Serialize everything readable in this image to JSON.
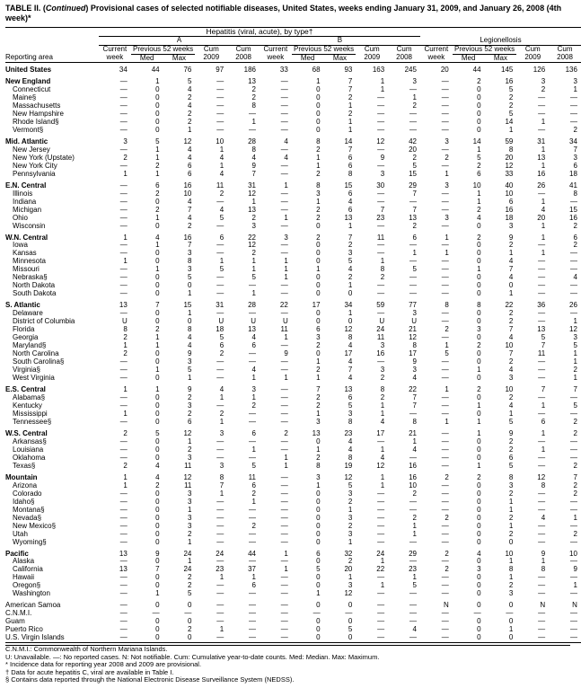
{
  "title_prefix": "TABLE II. (",
  "title_italic": "Continued",
  "title_rest": ") Provisional cases of selected notifiable diseases, United States, weeks ending January 31, 2009, and January 26, 2008 (4th week)*",
  "subtitle": "Hepatitis (viral, acute), by type†",
  "col_headers": {
    "group_a": "A",
    "group_b": "B",
    "group_leg": "Legionellosis",
    "reporting_area": "Reporting area",
    "current_week": "Current week",
    "previous_52": "Previous 52 weeks",
    "med": "Med",
    "max": "Max",
    "cum_2009": "Cum 2009",
    "cum_2008": "Cum 2008"
  },
  "rows": [
    {
      "g": 1,
      "lbl": "United States",
      "bold": 1,
      "v": [
        "34",
        "44",
        "76",
        "97",
        "186",
        "33",
        "68",
        "93",
        "163",
        "245",
        "20",
        "44",
        "145",
        "126",
        "136"
      ]
    },
    {
      "g": 1,
      "lbl": "New England",
      "bold": 1,
      "v": [
        "—",
        "1",
        "5",
        "—",
        "13",
        "—",
        "1",
        "7",
        "1",
        "3",
        "—",
        "2",
        "16",
        "3",
        "3"
      ]
    },
    {
      "lbl": "Connecticut",
      "ind": 1,
      "v": [
        "—",
        "0",
        "4",
        "—",
        "2",
        "—",
        "0",
        "7",
        "1",
        "—",
        "—",
        "0",
        "5",
        "2",
        "1"
      ]
    },
    {
      "lbl": "Maine§",
      "ind": 1,
      "v": [
        "—",
        "0",
        "2",
        "—",
        "2",
        "—",
        "0",
        "2",
        "—",
        "1",
        "—",
        "0",
        "2",
        "—",
        "—"
      ]
    },
    {
      "lbl": "Massachusetts",
      "ind": 1,
      "v": [
        "—",
        "0",
        "4",
        "—",
        "8",
        "—",
        "0",
        "1",
        "—",
        "2",
        "—",
        "0",
        "2",
        "—",
        "—"
      ]
    },
    {
      "lbl": "New Hampshire",
      "ind": 1,
      "v": [
        "—",
        "0",
        "2",
        "—",
        "—",
        "—",
        "0",
        "2",
        "—",
        "—",
        "—",
        "0",
        "5",
        "—",
        "—"
      ]
    },
    {
      "lbl": "Rhode Island§",
      "ind": 1,
      "v": [
        "—",
        "0",
        "2",
        "—",
        "1",
        "—",
        "0",
        "1",
        "—",
        "—",
        "—",
        "0",
        "14",
        "1",
        "—"
      ]
    },
    {
      "lbl": "Vermont§",
      "ind": 1,
      "v": [
        "—",
        "0",
        "1",
        "—",
        "—",
        "—",
        "0",
        "1",
        "—",
        "—",
        "—",
        "0",
        "1",
        "—",
        "2"
      ]
    },
    {
      "g": 1,
      "lbl": "Mid. Atlantic",
      "bold": 1,
      "v": [
        "3",
        "5",
        "12",
        "10",
        "28",
        "4",
        "8",
        "14",
        "12",
        "42",
        "3",
        "14",
        "59",
        "31",
        "34"
      ]
    },
    {
      "lbl": "New Jersey",
      "ind": 1,
      "v": [
        "—",
        "1",
        "4",
        "1",
        "8",
        "—",
        "2",
        "7",
        "—",
        "20",
        "—",
        "1",
        "8",
        "1",
        "7"
      ]
    },
    {
      "lbl": "New York (Upstate)",
      "ind": 1,
      "v": [
        "2",
        "1",
        "4",
        "4",
        "4",
        "4",
        "1",
        "6",
        "9",
        "2",
        "2",
        "5",
        "20",
        "13",
        "3"
      ]
    },
    {
      "lbl": "New York City",
      "ind": 1,
      "v": [
        "—",
        "2",
        "6",
        "1",
        "9",
        "—",
        "1",
        "6",
        "—",
        "5",
        "—",
        "2",
        "12",
        "1",
        "6"
      ]
    },
    {
      "lbl": "Pennsylvania",
      "ind": 1,
      "v": [
        "1",
        "1",
        "6",
        "4",
        "7",
        "—",
        "2",
        "8",
        "3",
        "15",
        "1",
        "6",
        "33",
        "16",
        "18"
      ]
    },
    {
      "g": 1,
      "lbl": "E.N. Central",
      "bold": 1,
      "v": [
        "—",
        "6",
        "16",
        "11",
        "31",
        "1",
        "8",
        "15",
        "30",
        "29",
        "3",
        "10",
        "40",
        "26",
        "41"
      ]
    },
    {
      "lbl": "Illinois",
      "ind": 1,
      "v": [
        "—",
        "2",
        "10",
        "2",
        "12",
        "—",
        "3",
        "6",
        "—",
        "7",
        "—",
        "1",
        "10",
        "—",
        "8"
      ]
    },
    {
      "lbl": "Indiana",
      "ind": 1,
      "v": [
        "—",
        "0",
        "4",
        "—",
        "1",
        "—",
        "1",
        "4",
        "—",
        "—",
        "—",
        "1",
        "6",
        "1",
        "—"
      ]
    },
    {
      "lbl": "Michigan",
      "ind": 1,
      "v": [
        "—",
        "2",
        "7",
        "4",
        "13",
        "—",
        "2",
        "6",
        "7",
        "7",
        "—",
        "2",
        "16",
        "4",
        "15"
      ]
    },
    {
      "lbl": "Ohio",
      "ind": 1,
      "v": [
        "—",
        "1",
        "4",
        "5",
        "2",
        "1",
        "2",
        "13",
        "23",
        "13",
        "3",
        "4",
        "18",
        "20",
        "16"
      ]
    },
    {
      "lbl": "Wisconsin",
      "ind": 1,
      "v": [
        "—",
        "0",
        "2",
        "—",
        "3",
        "—",
        "0",
        "1",
        "—",
        "2",
        "—",
        "0",
        "3",
        "1",
        "2"
      ]
    },
    {
      "g": 1,
      "lbl": "W.N. Central",
      "bold": 1,
      "v": [
        "1",
        "4",
        "16",
        "6",
        "22",
        "3",
        "2",
        "7",
        "11",
        "6",
        "1",
        "2",
        "9",
        "1",
        "6"
      ]
    },
    {
      "lbl": "Iowa",
      "ind": 1,
      "v": [
        "—",
        "1",
        "7",
        "—",
        "12",
        "—",
        "0",
        "2",
        "—",
        "—",
        "—",
        "0",
        "2",
        "—",
        "2"
      ]
    },
    {
      "lbl": "Kansas",
      "ind": 1,
      "v": [
        "—",
        "0",
        "3",
        "—",
        "2",
        "—",
        "0",
        "3",
        "—",
        "1",
        "1",
        "0",
        "1",
        "1",
        "—"
      ]
    },
    {
      "lbl": "Minnesota",
      "ind": 1,
      "v": [
        "1",
        "0",
        "8",
        "1",
        "1",
        "1",
        "0",
        "5",
        "1",
        "—",
        "—",
        "0",
        "4",
        "—",
        "—"
      ]
    },
    {
      "lbl": "Missouri",
      "ind": 1,
      "v": [
        "—",
        "1",
        "3",
        "5",
        "1",
        "1",
        "1",
        "4",
        "8",
        "5",
        "—",
        "1",
        "7",
        "—",
        "—"
      ]
    },
    {
      "lbl": "Nebraska§",
      "ind": 1,
      "v": [
        "—",
        "0",
        "5",
        "—",
        "5",
        "1",
        "0",
        "2",
        "2",
        "—",
        "—",
        "0",
        "4",
        "—",
        "4"
      ]
    },
    {
      "lbl": "North Dakota",
      "ind": 1,
      "v": [
        "—",
        "0",
        "0",
        "—",
        "—",
        "—",
        "0",
        "1",
        "—",
        "—",
        "—",
        "0",
        "0",
        "—",
        "—"
      ]
    },
    {
      "lbl": "South Dakota",
      "ind": 1,
      "v": [
        "—",
        "0",
        "1",
        "—",
        "1",
        "—",
        "0",
        "0",
        "—",
        "—",
        "—",
        "0",
        "1",
        "—",
        "—"
      ]
    },
    {
      "g": 1,
      "lbl": "S. Atlantic",
      "bold": 1,
      "v": [
        "13",
        "7",
        "15",
        "31",
        "28",
        "22",
        "17",
        "34",
        "59",
        "77",
        "8",
        "8",
        "22",
        "36",
        "26"
      ]
    },
    {
      "lbl": "Delaware",
      "ind": 1,
      "v": [
        "—",
        "0",
        "1",
        "—",
        "—",
        "—",
        "0",
        "1",
        "—",
        "3",
        "—",
        "0",
        "2",
        "—",
        "—"
      ]
    },
    {
      "lbl": "District of Columbia",
      "ind": 1,
      "v": [
        "U",
        "0",
        "0",
        "U",
        "U",
        "U",
        "0",
        "0",
        "U",
        "U",
        "—",
        "0",
        "2",
        "—",
        "1"
      ]
    },
    {
      "lbl": "Florida",
      "ind": 1,
      "v": [
        "8",
        "2",
        "8",
        "18",
        "13",
        "11",
        "6",
        "12",
        "24",
        "21",
        "2",
        "3",
        "7",
        "13",
        "12"
      ]
    },
    {
      "lbl": "Georgia",
      "ind": 1,
      "v": [
        "2",
        "1",
        "4",
        "5",
        "4",
        "1",
        "3",
        "8",
        "11",
        "12",
        "—",
        "0",
        "4",
        "5",
        "3"
      ]
    },
    {
      "lbl": "Maryland§",
      "ind": 1,
      "v": [
        "1",
        "1",
        "4",
        "6",
        "6",
        "—",
        "2",
        "4",
        "3",
        "8",
        "1",
        "2",
        "10",
        "7",
        "5"
      ]
    },
    {
      "lbl": "North Carolina",
      "ind": 1,
      "v": [
        "2",
        "0",
        "9",
        "2",
        "—",
        "9",
        "0",
        "17",
        "16",
        "17",
        "5",
        "0",
        "7",
        "11",
        "1"
      ]
    },
    {
      "lbl": "South Carolina§",
      "ind": 1,
      "v": [
        "—",
        "0",
        "3",
        "—",
        "—",
        "—",
        "1",
        "4",
        "—",
        "9",
        "—",
        "0",
        "2",
        "—",
        "1"
      ]
    },
    {
      "lbl": "Virginia§",
      "ind": 1,
      "v": [
        "—",
        "1",
        "5",
        "—",
        "4",
        "—",
        "2",
        "7",
        "3",
        "3",
        "—",
        "1",
        "4",
        "—",
        "2"
      ]
    },
    {
      "lbl": "West Virginia",
      "ind": 1,
      "v": [
        "—",
        "0",
        "1",
        "—",
        "1",
        "1",
        "1",
        "4",
        "2",
        "4",
        "—",
        "0",
        "3",
        "—",
        "1"
      ]
    },
    {
      "g": 1,
      "lbl": "E.S. Central",
      "bold": 1,
      "v": [
        "1",
        "1",
        "9",
        "4",
        "3",
        "—",
        "7",
        "13",
        "8",
        "22",
        "1",
        "2",
        "10",
        "7",
        "7"
      ]
    },
    {
      "lbl": "Alabama§",
      "ind": 1,
      "v": [
        "—",
        "0",
        "2",
        "1",
        "1",
        "—",
        "2",
        "6",
        "2",
        "7",
        "—",
        "0",
        "2",
        "—",
        "—"
      ]
    },
    {
      "lbl": "Kentucky",
      "ind": 1,
      "v": [
        "—",
        "0",
        "3",
        "—",
        "2",
        "—",
        "2",
        "5",
        "1",
        "7",
        "—",
        "1",
        "4",
        "1",
        "5"
      ]
    },
    {
      "lbl": "Mississippi",
      "ind": 1,
      "v": [
        "1",
        "0",
        "2",
        "2",
        "—",
        "—",
        "1",
        "3",
        "1",
        "—",
        "—",
        "0",
        "1",
        "—",
        "—"
      ]
    },
    {
      "lbl": "Tennessee§",
      "ind": 1,
      "v": [
        "—",
        "0",
        "6",
        "1",
        "—",
        "—",
        "3",
        "8",
        "4",
        "8",
        "1",
        "1",
        "5",
        "6",
        "2"
      ]
    },
    {
      "g": 1,
      "lbl": "W.S. Central",
      "bold": 1,
      "v": [
        "2",
        "5",
        "12",
        "3",
        "6",
        "2",
        "13",
        "23",
        "17",
        "21",
        "—",
        "1",
        "9",
        "1",
        "2"
      ]
    },
    {
      "lbl": "Arkansas§",
      "ind": 1,
      "v": [
        "—",
        "0",
        "1",
        "—",
        "—",
        "—",
        "0",
        "4",
        "—",
        "1",
        "—",
        "0",
        "2",
        "—",
        "—"
      ]
    },
    {
      "lbl": "Louisiana",
      "ind": 1,
      "v": [
        "—",
        "0",
        "2",
        "—",
        "1",
        "—",
        "1",
        "4",
        "1",
        "4",
        "—",
        "0",
        "2",
        "1",
        "—"
      ]
    },
    {
      "lbl": "Oklahoma",
      "ind": 1,
      "v": [
        "—",
        "0",
        "3",
        "—",
        "—",
        "1",
        "2",
        "8",
        "4",
        "—",
        "—",
        "0",
        "6",
        "—",
        "—"
      ]
    },
    {
      "lbl": "Texas§",
      "ind": 1,
      "v": [
        "2",
        "4",
        "11",
        "3",
        "5",
        "1",
        "8",
        "19",
        "12",
        "16",
        "—",
        "1",
        "5",
        "—",
        "2"
      ]
    },
    {
      "g": 1,
      "lbl": "Mountain",
      "bold": 1,
      "v": [
        "1",
        "4",
        "12",
        "8",
        "11",
        "—",
        "3",
        "12",
        "1",
        "16",
        "2",
        "2",
        "8",
        "12",
        "7"
      ]
    },
    {
      "lbl": "Arizona",
      "ind": 1,
      "v": [
        "1",
        "2",
        "11",
        "7",
        "6",
        "—",
        "1",
        "5",
        "1",
        "10",
        "—",
        "0",
        "3",
        "8",
        "2"
      ]
    },
    {
      "lbl": "Colorado",
      "ind": 1,
      "v": [
        "—",
        "0",
        "3",
        "1",
        "2",
        "—",
        "0",
        "3",
        "—",
        "2",
        "—",
        "0",
        "2",
        "—",
        "2"
      ]
    },
    {
      "lbl": "Idaho§",
      "ind": 1,
      "v": [
        "—",
        "0",
        "3",
        "—",
        "1",
        "—",
        "0",
        "2",
        "—",
        "—",
        "—",
        "0",
        "1",
        "—",
        "—"
      ]
    },
    {
      "lbl": "Montana§",
      "ind": 1,
      "v": [
        "—",
        "0",
        "1",
        "—",
        "—",
        "—",
        "0",
        "1",
        "—",
        "—",
        "—",
        "0",
        "1",
        "—",
        "—"
      ]
    },
    {
      "lbl": "Nevada§",
      "ind": 1,
      "v": [
        "—",
        "0",
        "3",
        "—",
        "—",
        "—",
        "0",
        "3",
        "—",
        "2",
        "2",
        "0",
        "2",
        "4",
        "1"
      ]
    },
    {
      "lbl": "New Mexico§",
      "ind": 1,
      "v": [
        "—",
        "0",
        "3",
        "—",
        "2",
        "—",
        "0",
        "2",
        "—",
        "1",
        "—",
        "0",
        "1",
        "—",
        "—"
      ]
    },
    {
      "lbl": "Utah",
      "ind": 1,
      "v": [
        "—",
        "0",
        "2",
        "—",
        "—",
        "—",
        "0",
        "3",
        "—",
        "1",
        "—",
        "0",
        "2",
        "—",
        "2"
      ]
    },
    {
      "lbl": "Wyoming§",
      "ind": 1,
      "v": [
        "—",
        "0",
        "1",
        "—",
        "—",
        "—",
        "0",
        "1",
        "—",
        "—",
        "—",
        "0",
        "0",
        "—",
        "—"
      ]
    },
    {
      "g": 1,
      "lbl": "Pacific",
      "bold": 1,
      "v": [
        "13",
        "9",
        "24",
        "24",
        "44",
        "1",
        "6",
        "32",
        "24",
        "29",
        "2",
        "4",
        "10",
        "9",
        "10"
      ]
    },
    {
      "lbl": "Alaska",
      "ind": 1,
      "v": [
        "—",
        "0",
        "1",
        "—",
        "—",
        "—",
        "0",
        "2",
        "1",
        "—",
        "—",
        "0",
        "1",
        "1",
        "—"
      ]
    },
    {
      "lbl": "California",
      "ind": 1,
      "v": [
        "13",
        "7",
        "24",
        "23",
        "37",
        "1",
        "5",
        "20",
        "22",
        "23",
        "2",
        "3",
        "8",
        "8",
        "9"
      ]
    },
    {
      "lbl": "Hawaii",
      "ind": 1,
      "v": [
        "—",
        "0",
        "2",
        "1",
        "1",
        "—",
        "0",
        "1",
        "—",
        "1",
        "—",
        "0",
        "1",
        "—",
        "—"
      ]
    },
    {
      "lbl": "Oregon§",
      "ind": 1,
      "v": [
        "—",
        "0",
        "2",
        "—",
        "6",
        "—",
        "0",
        "3",
        "1",
        "5",
        "—",
        "0",
        "2",
        "—",
        "1"
      ]
    },
    {
      "lbl": "Washington",
      "ind": 1,
      "v": [
        "—",
        "1",
        "5",
        "—",
        "—",
        "—",
        "1",
        "12",
        "—",
        "—",
        "—",
        "0",
        "3",
        "—",
        "—"
      ]
    },
    {
      "g": 1,
      "lbl": "American Samoa",
      "v": [
        "—",
        "0",
        "0",
        "—",
        "—",
        "—",
        "0",
        "0",
        "—",
        "—",
        "N",
        "0",
        "0",
        "N",
        "N"
      ]
    },
    {
      "lbl": "C.N.M.I.",
      "v": [
        "—",
        "—",
        "—",
        "—",
        "—",
        "—",
        "—",
        "—",
        "—",
        "—",
        "—",
        "—",
        "—",
        "—",
        "—"
      ]
    },
    {
      "lbl": "Guam",
      "v": [
        "—",
        "0",
        "0",
        "—",
        "—",
        "—",
        "0",
        "0",
        "—",
        "—",
        "—",
        "0",
        "0",
        "—",
        "—"
      ]
    },
    {
      "lbl": "Puerto Rico",
      "v": [
        "—",
        "0",
        "2",
        "1",
        "—",
        "—",
        "0",
        "5",
        "—",
        "4",
        "—",
        "0",
        "1",
        "—",
        "—"
      ]
    },
    {
      "lbl": "U.S. Virgin Islands",
      "v": [
        "—",
        "0",
        "0",
        "—",
        "—",
        "—",
        "0",
        "0",
        "—",
        "—",
        "—",
        "0",
        "0",
        "—",
        "—"
      ]
    }
  ],
  "footnotes": [
    "C.N.M.I.: Commonwealth of Northern Mariana Islands.",
    "U: Unavailable.   —: No reported cases.   N: Not notifiable.   Cum: Cumulative year-to-date counts.   Med: Median.   Max: Maximum.",
    "* Incidence data for reporting year 2008 and 2009 are provisional.",
    "† Data for acute hepatitis C, viral are available in Table I.",
    "§ Contains data reported through the National Electronic Disease Surveillance System (NEDSS)."
  ],
  "colors": {
    "bg": "#ffffff",
    "fg": "#000000",
    "rule": "#000000"
  }
}
